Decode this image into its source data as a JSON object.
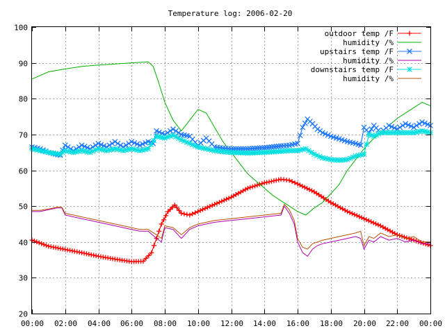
{
  "chart_data": {
    "type": "line",
    "title": "Temperature log: 2006-02-20",
    "xlabel": "",
    "ylabel": "",
    "ylim": [
      20,
      100
    ],
    "xlim": [
      0,
      24
    ],
    "grid": true,
    "legend_position": "top-right",
    "y_ticks": [
      "20",
      "30",
      "40",
      "50",
      "60",
      "70",
      "80",
      "90",
      "100"
    ],
    "x_ticks": [
      "00:00",
      "02:00",
      "04:00",
      "06:00",
      "08:00",
      "10:00",
      "12:00",
      "14:00",
      "16:00",
      "18:00",
      "20:00",
      "22:00",
      "00:00"
    ],
    "series": [
      {
        "name": "outdoor temp /F",
        "color": "#ff0000",
        "marker": "plus",
        "x": [
          0,
          1,
          2,
          3,
          4,
          5,
          6,
          6.7,
          7.2,
          7.5,
          7.8,
          8.2,
          8.6,
          9.0,
          9.5,
          10,
          11,
          12,
          13,
          14,
          15,
          15.5,
          16,
          17,
          18,
          19,
          20,
          21,
          22,
          23,
          24
        ],
        "y": [
          40.5,
          38.8,
          37.9,
          37.0,
          36.0,
          35.2,
          34.5,
          34.6,
          37,
          41,
          45,
          48.5,
          50.3,
          48,
          47.5,
          48.5,
          50.5,
          52.5,
          55,
          56.5,
          57.5,
          57.2,
          56.2,
          54,
          51,
          48.5,
          46.5,
          44.5,
          42,
          40.5,
          39
        ]
      },
      {
        "name": "humidity /%",
        "color": "#00b000",
        "marker": "none",
        "x": [
          0,
          0.5,
          1,
          2,
          3,
          4,
          5,
          6,
          7,
          7.3,
          7.6,
          8,
          8.5,
          9,
          9.5,
          10,
          10.5,
          11,
          11.5,
          12,
          12.5,
          13,
          13.5,
          14,
          14.5,
          15,
          15.5,
          16,
          16.5,
          17,
          17.5,
          18,
          18.5,
          19,
          19.5,
          20,
          20.5,
          21,
          21.5,
          22,
          22.5,
          23,
          23.5,
          24
        ],
        "y": [
          85.5,
          86.5,
          87.5,
          88.3,
          89,
          89.4,
          89.7,
          90,
          90.3,
          89,
          85,
          79,
          74,
          71,
          74,
          77,
          76,
          72,
          68,
          65,
          62,
          59,
          57,
          55,
          53,
          51.5,
          50,
          48.5,
          47.5,
          49.5,
          51,
          53.5,
          56,
          60,
          63,
          66,
          68.5,
          70.5,
          72.5,
          74.5,
          76,
          77.5,
          79,
          78
        ]
      },
      {
        "name": "upstairs temp /F",
        "color": "#1e78ff",
        "marker": "cross",
        "x": [
          0,
          0.5,
          1,
          1.7,
          2,
          2.5,
          3,
          3.5,
          4,
          4.5,
          5,
          5.5,
          6,
          6.5,
          7,
          7.3,
          7.5,
          8,
          8.5,
          9,
          9.5,
          10,
          10.5,
          11,
          11.5,
          12,
          13,
          14,
          15,
          15.5,
          16,
          16.3,
          16.6,
          16.9,
          17.2,
          17.5,
          18,
          18.5,
          19,
          19.5,
          19.8,
          20,
          20.3,
          20.6,
          21,
          21.5,
          22,
          22.5,
          23,
          23.5,
          24
        ],
        "y": [
          66.5,
          66,
          65,
          64.2,
          67,
          65.5,
          67,
          66,
          67.5,
          66.5,
          68,
          66.5,
          68,
          67,
          68,
          67.5,
          71,
          70,
          71.5,
          70,
          69.5,
          67,
          69,
          66.5,
          66.2,
          66,
          66,
          66.3,
          66.8,
          67,
          67.5,
          72,
          74.3,
          73,
          71.5,
          70.5,
          69.5,
          68.8,
          68,
          67.5,
          67,
          72,
          70.5,
          72.5,
          70.5,
          72.5,
          71.5,
          73,
          72,
          73.5,
          72.5
        ]
      },
      {
        "name": "humidity /%",
        "color": "#b000b0",
        "marker": "none",
        "x": [
          0,
          0.5,
          1,
          1.5,
          1.8,
          2,
          2.5,
          3,
          3.5,
          4,
          4.5,
          5,
          5.5,
          6,
          6.5,
          7,
          7.5,
          7.8,
          8,
          8.5,
          9,
          9.5,
          10,
          10.5,
          11,
          12,
          13,
          14,
          15,
          15.2,
          15.5,
          15.8,
          16,
          16.3,
          16.6,
          16.9,
          17.2,
          17.5,
          18,
          18.5,
          19,
          19.5,
          19.8,
          20,
          20.3,
          20.6,
          21,
          21.5,
          22,
          22.5,
          23,
          23.5,
          24
        ],
        "y": [
          48.5,
          48.5,
          49,
          49.5,
          49.5,
          47.5,
          47,
          46.5,
          46,
          45.5,
          45,
          44.5,
          44,
          43.5,
          43,
          43,
          41,
          40,
          44,
          43.5,
          41,
          43.5,
          44.5,
          45,
          45.5,
          46,
          46.5,
          47,
          47.5,
          50,
          48,
          45,
          40,
          37,
          36,
          38,
          39,
          39.5,
          40,
          40.5,
          41,
          41.5,
          41,
          38,
          40.5,
          40,
          41.5,
          40.5,
          41,
          40,
          40.5,
          39.5,
          39.5
        ]
      },
      {
        "name": "downstairs temp /F",
        "color": "#00e0e0",
        "marker": "star",
        "x": [
          0,
          0.5,
          1,
          1.7,
          2,
          2.5,
          3,
          3.5,
          4,
          4.5,
          5,
          5.5,
          6,
          6.5,
          7,
          7.5,
          8,
          8.5,
          9,
          9.5,
          10,
          10.5,
          11,
          11.5,
          12,
          13,
          14,
          15,
          15.5,
          16,
          16.5,
          17,
          17.5,
          18,
          18.5,
          19,
          19.5,
          20,
          20.3,
          20.6,
          21,
          21.5,
          22,
          22.5,
          23,
          23.5,
          24
        ],
        "y": [
          66,
          65.5,
          65,
          64.5,
          65.5,
          65,
          65.5,
          65,
          66,
          65.5,
          66,
          65.5,
          66,
          65.5,
          66,
          69.5,
          69,
          69.8,
          68.5,
          67.5,
          66.5,
          66,
          65.5,
          65.2,
          65,
          64.8,
          65,
          65.3,
          65.5,
          65.5,
          66,
          64.5,
          63.5,
          63,
          62.8,
          63,
          64,
          64.5,
          70,
          69.5,
          70.5,
          70.5,
          70.5,
          70.5,
          70.5,
          71,
          70.5
        ]
      },
      {
        "name": "humidity /%",
        "color": "#b85000",
        "marker": "none",
        "x": [
          0,
          0.5,
          1,
          1.5,
          1.8,
          2,
          2.5,
          3,
          3.5,
          4,
          4.5,
          5,
          5.5,
          6,
          6.5,
          7,
          7.5,
          7.8,
          8,
          8.5,
          9,
          9.5,
          10,
          10.5,
          11,
          12,
          13,
          14,
          15,
          15.2,
          15.5,
          15.8,
          16,
          16.3,
          16.6,
          16.9,
          17.2,
          17.5,
          18,
          18.5,
          19,
          19.5,
          19.8,
          20,
          20.3,
          20.6,
          21,
          21.5,
          22,
          22.5,
          23,
          23.5,
          24
        ],
        "y": [
          48.8,
          48.8,
          49.2,
          49.7,
          49.7,
          48,
          47.5,
          47,
          46.5,
          46,
          45.5,
          45,
          44.5,
          44,
          43.5,
          43.5,
          42,
          41,
          44.5,
          44,
          42,
          44,
          45,
          45.5,
          46,
          46.5,
          47,
          47.5,
          48,
          50.5,
          49,
          46,
          41,
          38.5,
          38,
          39.5,
          40,
          40.5,
          41,
          41.5,
          42,
          42.5,
          43,
          39,
          41.5,
          41,
          42.5,
          41.5,
          42,
          41,
          41.5,
          40,
          40
        ]
      }
    ]
  }
}
